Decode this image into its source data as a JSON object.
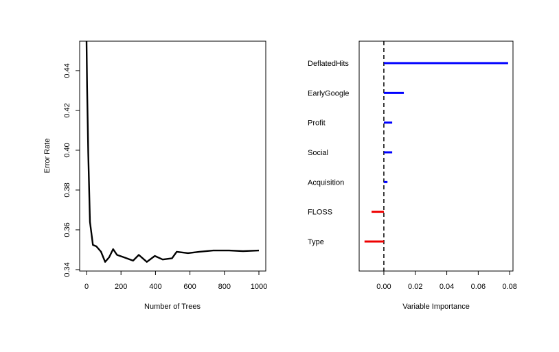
{
  "chart_data": [
    {
      "type": "line",
      "title": "",
      "xlabel": "Number of Trees",
      "ylabel": "Error Rate",
      "xlim": [
        0,
        1000
      ],
      "ylim": [
        0.3393,
        0.4548
      ],
      "xticks": [
        0,
        200,
        400,
        600,
        800,
        1000
      ],
      "xtick_labels": [
        "0",
        "200",
        "400",
        "600",
        "800",
        "1000"
      ],
      "yticks": [
        0.34,
        0.36,
        0.38,
        0.4,
        0.42,
        0.44
      ],
      "ytick_labels": [
        "0.34",
        "0.36",
        "0.38",
        "0.40",
        "0.42",
        "0.44"
      ],
      "grid": false,
      "color": "#000000",
      "x": [
        0,
        3,
        10,
        20,
        37,
        57,
        84,
        108,
        131,
        154,
        177,
        217,
        270,
        303,
        350,
        396,
        442,
        496,
        523,
        589,
        655,
        735,
        828,
        908,
        1000
      ],
      "y": [
        0.47,
        0.432,
        0.3986,
        0.364,
        0.3524,
        0.3517,
        0.349,
        0.3439,
        0.3462,
        0.3503,
        0.3474,
        0.3462,
        0.3445,
        0.3474,
        0.3439,
        0.3469,
        0.3451,
        0.3457,
        0.349,
        0.3483,
        0.349,
        0.3496,
        0.3496,
        0.3493,
        0.3496
      ]
    },
    {
      "type": "bar",
      "orientation": "horizontal",
      "title": "",
      "xlabel": "Variable Importance",
      "ylabel": "",
      "xlim": [
        -0.0157,
        0.0821
      ],
      "xticks": [
        0.0,
        0.02,
        0.04,
        0.06,
        0.08
      ],
      "xtick_labels": [
        "0.00",
        "0.02",
        "0.04",
        "0.06",
        "0.08"
      ],
      "grid": false,
      "reference_line": {
        "x": 0,
        "style": "dashed"
      },
      "positive_color": "#0000ff",
      "negative_color": "#ee0000",
      "categories": [
        "DeflatedHits",
        "EarlyGoogle",
        "Profit",
        "Social",
        "Acquisition",
        "FLOSS",
        "Type"
      ],
      "values": [
        0.079,
        0.0127,
        0.0053,
        0.0053,
        0.0023,
        -0.0078,
        -0.0123
      ]
    }
  ]
}
